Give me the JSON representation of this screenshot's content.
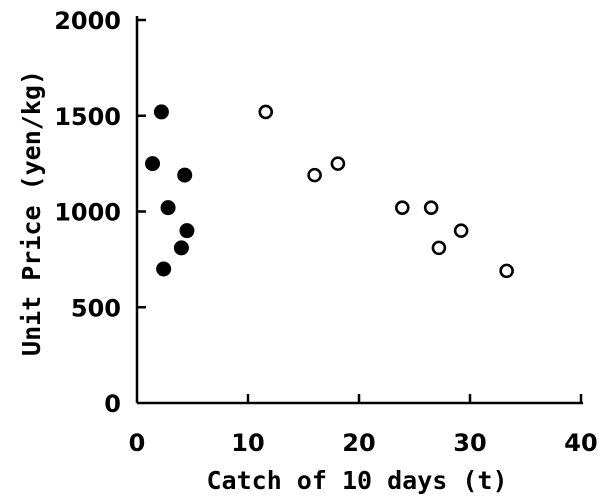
{
  "chart_data": {
    "type": "scatter",
    "title": "",
    "xlabel": "Catch of 10 days (t)",
    "ylabel": "Unit Price (yen/kg)",
    "xlim": [
      0,
      40
    ],
    "ylim": [
      0,
      2000
    ],
    "x_ticks": [
      0,
      10,
      20,
      30,
      40
    ],
    "y_ticks": [
      0,
      500,
      1000,
      1500,
      2000
    ],
    "grid": false,
    "series": [
      {
        "marker": "filled-circle",
        "color": "#000000",
        "points": [
          {
            "x": 2.2,
            "y": 1520
          },
          {
            "x": 1.4,
            "y": 1250
          },
          {
            "x": 4.3,
            "y": 1190
          },
          {
            "x": 2.8,
            "y": 1020
          },
          {
            "x": 4.5,
            "y": 900
          },
          {
            "x": 4.0,
            "y": 810
          },
          {
            "x": 2.4,
            "y": 700
          }
        ]
      },
      {
        "marker": "open-circle",
        "color": "#000000",
        "points": [
          {
            "x": 11.6,
            "y": 1520
          },
          {
            "x": 16.0,
            "y": 1190
          },
          {
            "x": 18.1,
            "y": 1250
          },
          {
            "x": 23.9,
            "y": 1020
          },
          {
            "x": 26.5,
            "y": 1020
          },
          {
            "x": 27.2,
            "y": 810
          },
          {
            "x": 29.2,
            "y": 900
          },
          {
            "x": 33.3,
            "y": 690
          }
        ]
      }
    ]
  }
}
